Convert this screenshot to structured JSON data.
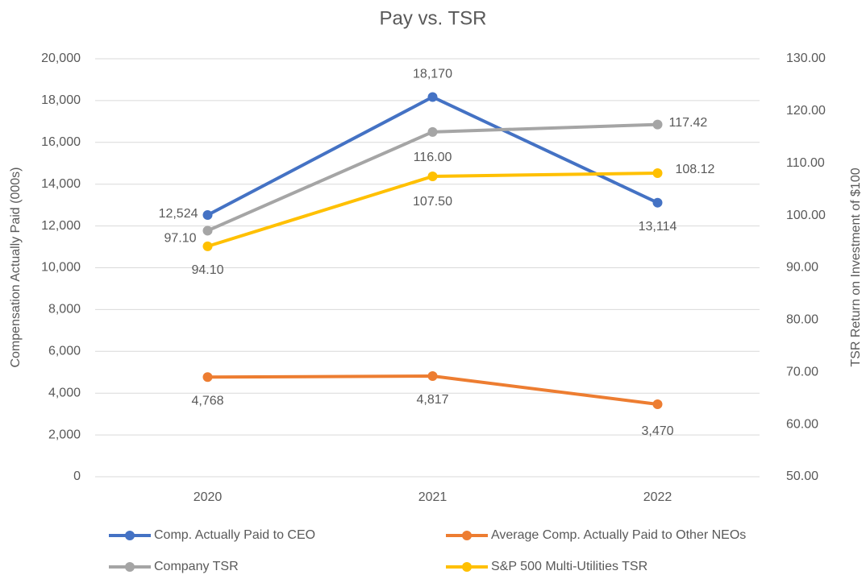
{
  "chart_data": {
    "type": "line",
    "title": "Pay vs. TSR",
    "y_label": "Compensation Actually Paid (000s)",
    "y2_label": "TSR Return on Investment of $100",
    "categories": [
      "2020",
      "2021",
      "2022"
    ],
    "series": [
      {
        "name": "Comp. Actually Paid to CEO",
        "color": "#4472c4",
        "values": [
          12524,
          18170,
          13114
        ],
        "value_labels": [
          "12,524",
          "18,170",
          "13,114"
        ]
      },
      {
        "name": "Average Comp. Actually Paid to Other NEOs",
        "color": "#ed7d31",
        "values": [
          4768,
          4817,
          3470
        ],
        "value_labels": [
          "4,768",
          "4,817",
          "3,470"
        ]
      },
      {
        "name": "Company TSR",
        "color": "#a5a5a5",
        "axis": "y2",
        "values": [
          97.1,
          116.0,
          117.42
        ],
        "value_labels": [
          "97.10",
          "116.00",
          "117.42"
        ]
      },
      {
        "name": "S&P 500 Multi-Utilities TSR",
        "color": "#ffc000",
        "axis": "y2",
        "values": [
          94.1,
          107.5,
          108.12
        ],
        "value_labels": [
          "94.10",
          "107.50",
          "108.12"
        ]
      }
    ],
    "ylim": [
      0,
      20000
    ],
    "yticks": [
      0,
      {
        "value": 2000,
        "label": "2,000"
      },
      {
        "value": 4000,
        "label": "4,000"
      },
      {
        "value": 6000,
        "label": "6,000"
      },
      {
        "value": 8000,
        "label": "8,000"
      },
      {
        "value": 10000,
        "label": "10,000"
      },
      {
        "value": 12000,
        "label": "12,000"
      },
      {
        "value": 14000,
        "label": "14,000"
      },
      {
        "value": 16000,
        "label": "16,000"
      },
      {
        "value": 18000,
        "label": "18,000"
      },
      {
        "value": 20000,
        "label": "20,000"
      }
    ],
    "y2lim": [
      50,
      130
    ],
    "y2ticks": [
      {
        "value": 50,
        "label": "50.00"
      },
      {
        "value": 60,
        "label": "60.00"
      },
      {
        "value": 70,
        "label": "70.00"
      },
      {
        "value": 80,
        "label": "80.00"
      },
      {
        "value": 90,
        "label": "90.00"
      },
      {
        "value": 100,
        "label": "100.00"
      },
      {
        "value": 110,
        "label": "110.00"
      },
      {
        "value": 120,
        "label": "120.00"
      },
      {
        "value": 130,
        "label": "130.00"
      }
    ],
    "grid": true,
    "legend": "bottom"
  }
}
